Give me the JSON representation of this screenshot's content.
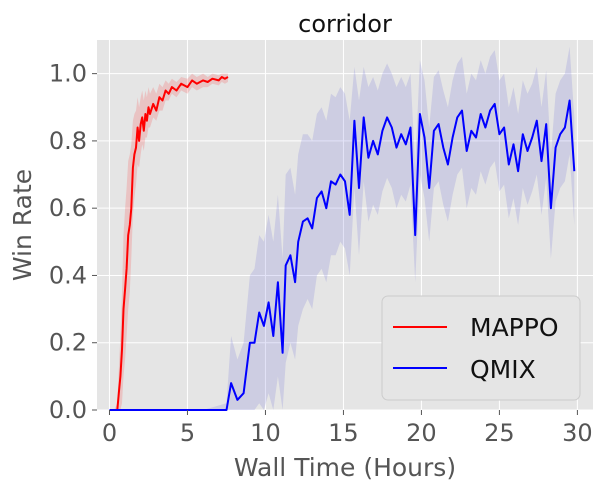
{
  "chart_data": {
    "type": "line",
    "title": "corridor",
    "xlabel": "Wall Time (Hours)",
    "ylabel": "Win Rate",
    "xlim": [
      -0.8,
      31.0
    ],
    "ylim": [
      0.0,
      1.1
    ],
    "xticks": [
      0,
      5,
      10,
      15,
      20,
      25,
      30
    ],
    "yticks": [
      0.0,
      0.2,
      0.4,
      0.6,
      0.8,
      1.0
    ],
    "xtick_labels": [
      "0",
      "5",
      "10",
      "15",
      "20",
      "25",
      "30"
    ],
    "ytick_labels": [
      "0.0",
      "0.2",
      "0.4",
      "0.6",
      "0.8",
      "1.0"
    ],
    "grid": true,
    "legend_position": "bottom-right",
    "series": [
      {
        "name": "MAPPO",
        "color": "#ff0000",
        "band_color": "#ff0000",
        "x": [
          0.0,
          0.3,
          0.5,
          0.6,
          0.7,
          0.8,
          0.9,
          1.0,
          1.1,
          1.2,
          1.3,
          1.4,
          1.5,
          1.6,
          1.7,
          1.8,
          1.9,
          2.0,
          2.1,
          2.2,
          2.3,
          2.4,
          2.5,
          2.6,
          2.8,
          3.0,
          3.2,
          3.4,
          3.6,
          3.8,
          4.0,
          4.3,
          4.6,
          5.0,
          5.3,
          5.6,
          6.0,
          6.3,
          6.6,
          7.0,
          7.2,
          7.4,
          7.6
        ],
        "y": [
          0.0,
          0.0,
          0.0,
          0.05,
          0.1,
          0.18,
          0.3,
          0.36,
          0.42,
          0.52,
          0.55,
          0.6,
          0.72,
          0.76,
          0.78,
          0.84,
          0.8,
          0.85,
          0.87,
          0.83,
          0.88,
          0.86,
          0.9,
          0.88,
          0.91,
          0.89,
          0.93,
          0.92,
          0.95,
          0.94,
          0.96,
          0.95,
          0.97,
          0.96,
          0.98,
          0.97,
          0.98,
          0.975,
          0.985,
          0.98,
          0.99,
          0.985,
          0.99
        ],
        "lower": [
          0.0,
          0.0,
          0.0,
          0.0,
          0.0,
          0.02,
          0.1,
          0.15,
          0.22,
          0.3,
          0.35,
          0.45,
          0.58,
          0.63,
          0.67,
          0.73,
          0.72,
          0.76,
          0.79,
          0.77,
          0.81,
          0.81,
          0.84,
          0.84,
          0.87,
          0.86,
          0.89,
          0.89,
          0.92,
          0.92,
          0.94,
          0.93,
          0.95,
          0.94,
          0.96,
          0.95,
          0.96,
          0.96,
          0.97,
          0.965,
          0.975,
          0.97,
          0.975
        ],
        "upper": [
          0.0,
          0.0,
          0.02,
          0.12,
          0.22,
          0.35,
          0.52,
          0.6,
          0.66,
          0.74,
          0.76,
          0.79,
          0.86,
          0.88,
          0.89,
          0.93,
          0.9,
          0.93,
          0.95,
          0.92,
          0.95,
          0.93,
          0.96,
          0.94,
          0.96,
          0.94,
          0.97,
          0.96,
          0.98,
          0.97,
          0.985,
          0.975,
          0.99,
          0.985,
          1.0,
          0.99,
          1.0,
          0.99,
          1.0,
          0.995,
          1.0,
          1.0,
          1.0
        ]
      },
      {
        "name": "QMIX",
        "color": "#0000ff",
        "band_color": "#4040d0",
        "x": [
          0.0,
          2.0,
          4.0,
          6.0,
          7.5,
          7.8,
          8.2,
          8.6,
          9.0,
          9.3,
          9.6,
          9.9,
          10.2,
          10.5,
          10.8,
          11.1,
          11.3,
          11.6,
          11.9,
          12.1,
          12.4,
          12.7,
          13.0,
          13.3,
          13.6,
          13.9,
          14.2,
          14.5,
          14.8,
          15.1,
          15.4,
          15.7,
          16.0,
          16.3,
          16.6,
          16.9,
          17.2,
          17.5,
          17.8,
          18.1,
          18.4,
          18.7,
          19.0,
          19.3,
          19.6,
          19.9,
          20.2,
          20.5,
          20.8,
          21.1,
          21.4,
          21.7,
          22.0,
          22.3,
          22.6,
          22.9,
          23.2,
          23.5,
          23.8,
          24.1,
          24.4,
          24.7,
          25.0,
          25.3,
          25.6,
          25.9,
          26.2,
          26.5,
          26.8,
          27.1,
          27.4,
          27.7,
          28.0,
          28.3,
          28.6,
          28.9,
          29.2,
          29.5,
          29.8
        ],
        "y": [
          0.0,
          0.0,
          0.0,
          0.0,
          0.0,
          0.08,
          0.03,
          0.05,
          0.2,
          0.2,
          0.29,
          0.25,
          0.32,
          0.22,
          0.38,
          0.17,
          0.43,
          0.46,
          0.38,
          0.5,
          0.56,
          0.57,
          0.54,
          0.63,
          0.65,
          0.6,
          0.68,
          0.67,
          0.7,
          0.68,
          0.58,
          0.86,
          0.66,
          0.87,
          0.75,
          0.8,
          0.76,
          0.83,
          0.87,
          0.84,
          0.78,
          0.82,
          0.79,
          0.84,
          0.52,
          0.88,
          0.81,
          0.66,
          0.83,
          0.85,
          0.78,
          0.73,
          0.81,
          0.87,
          0.89,
          0.77,
          0.83,
          0.81,
          0.88,
          0.84,
          0.89,
          0.91,
          0.82,
          0.84,
          0.73,
          0.79,
          0.71,
          0.82,
          0.77,
          0.81,
          0.86,
          0.74,
          0.85,
          0.6,
          0.78,
          0.82,
          0.84,
          0.92,
          0.71
        ],
        "lower": [
          0.0,
          0.0,
          0.0,
          0.0,
          0.0,
          0.0,
          0.0,
          0.0,
          0.0,
          0.0,
          0.02,
          0.0,
          0.05,
          0.0,
          0.1,
          0.0,
          0.14,
          0.2,
          0.15,
          0.25,
          0.3,
          0.33,
          0.3,
          0.4,
          0.42,
          0.38,
          0.46,
          0.46,
          0.5,
          0.48,
          0.4,
          0.66,
          0.46,
          0.68,
          0.56,
          0.61,
          0.58,
          0.65,
          0.69,
          0.66,
          0.6,
          0.64,
          0.62,
          0.67,
          0.38,
          0.7,
          0.63,
          0.5,
          0.66,
          0.68,
          0.61,
          0.56,
          0.64,
          0.7,
          0.72,
          0.6,
          0.66,
          0.64,
          0.71,
          0.67,
          0.72,
          0.74,
          0.65,
          0.67,
          0.57,
          0.63,
          0.55,
          0.66,
          0.61,
          0.65,
          0.7,
          0.58,
          0.69,
          0.45,
          0.62,
          0.66,
          0.68,
          0.76,
          0.55
        ],
        "upper": [
          0.0,
          0.0,
          0.0,
          0.0,
          0.02,
          0.22,
          0.15,
          0.2,
          0.4,
          0.42,
          0.52,
          0.5,
          0.58,
          0.5,
          0.64,
          0.45,
          0.7,
          0.72,
          0.64,
          0.76,
          0.82,
          0.82,
          0.8,
          0.88,
          0.9,
          0.86,
          0.94,
          0.93,
          0.96,
          0.94,
          0.86,
          1.02,
          0.92,
          1.02,
          0.96,
          0.99,
          0.95,
          1.0,
          1.03,
          1.0,
          0.96,
          0.99,
          0.96,
          1.0,
          0.72,
          1.04,
          0.98,
          0.84,
          0.99,
          1.01,
          0.95,
          0.9,
          0.98,
          1.03,
          1.05,
          0.94,
          1.0,
          0.98,
          1.04,
          1.0,
          1.05,
          1.07,
          0.98,
          1.0,
          0.9,
          0.96,
          0.88,
          0.98,
          0.94,
          0.97,
          1.02,
          0.9,
          1.01,
          0.76,
          0.94,
          0.98,
          1.0,
          1.08,
          0.87
        ]
      }
    ]
  }
}
